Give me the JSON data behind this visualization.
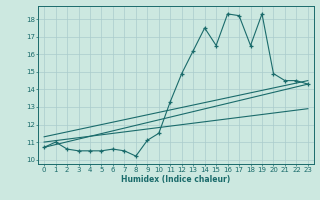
{
  "xlabel": "Humidex (Indice chaleur)",
  "bg_color": "#cce8e0",
  "grid_color": "#aacccc",
  "line_color": "#1a6b6b",
  "xlim": [
    -0.5,
    23.5
  ],
  "ylim": [
    9.75,
    18.75
  ],
  "xticks": [
    0,
    1,
    2,
    3,
    4,
    5,
    6,
    7,
    8,
    9,
    10,
    11,
    12,
    13,
    14,
    15,
    16,
    17,
    18,
    19,
    20,
    21,
    22,
    23
  ],
  "yticks": [
    10,
    11,
    12,
    13,
    14,
    15,
    16,
    17,
    18
  ],
  "main_x": [
    0,
    1,
    2,
    3,
    4,
    5,
    6,
    7,
    8,
    9,
    10,
    11,
    12,
    13,
    14,
    15,
    16,
    17,
    18,
    19,
    20,
    21,
    22,
    23
  ],
  "main_y": [
    10.7,
    11.0,
    10.6,
    10.5,
    10.5,
    10.5,
    10.6,
    10.5,
    10.2,
    11.1,
    11.5,
    13.3,
    14.9,
    16.2,
    17.5,
    16.5,
    18.3,
    18.2,
    16.5,
    18.3,
    14.9,
    14.5,
    14.5,
    14.3
  ],
  "line1_x": [
    0,
    23
  ],
  "line1_y": [
    10.7,
    14.3
  ],
  "line2_x": [
    0,
    23
  ],
  "line2_y": [
    11.0,
    12.9
  ],
  "line3_x": [
    0,
    23
  ],
  "line3_y": [
    11.3,
    14.5
  ]
}
